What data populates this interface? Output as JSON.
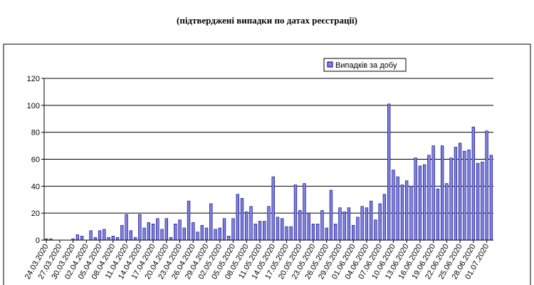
{
  "chart_data": {
    "type": "bar",
    "subtitle": "(підтверджені випадки по датах реєстрації)",
    "categories": [
      "24.03.2020",
      null,
      null,
      "27.03.2020",
      null,
      null,
      "30.03.2020",
      null,
      null,
      "02.04.2020",
      null,
      null,
      "05.04.2020",
      null,
      null,
      "08.04.2020",
      null,
      null,
      "11.04.2020",
      null,
      null,
      "14.04.2020",
      null,
      null,
      "17.04.2020",
      null,
      null,
      "20.04.2020",
      null,
      null,
      "23.04.2020",
      null,
      null,
      "26.04.2020",
      null,
      null,
      "29.04.2020",
      null,
      null,
      "02.05.2020",
      null,
      null,
      "05.05.2020",
      null,
      null,
      "08.05.2020",
      null,
      null,
      "11.05.2020",
      null,
      null,
      "14.05.2020",
      null,
      null,
      "17.05.2020",
      null,
      null,
      "20.05.2020",
      null,
      null,
      "23.05.2020",
      null,
      null,
      "26.05.2020",
      null,
      null,
      "29.05.2020",
      null,
      null,
      "01.06.2020",
      null,
      null,
      "04.06.2020",
      null,
      null,
      "07.06.2020",
      null,
      null,
      "10.06.2020",
      null,
      null,
      "13.06.2020",
      null,
      null,
      "16.06.2020",
      null,
      null,
      "19.06.2020",
      null,
      null,
      "22.06.2020",
      null,
      null,
      "25.06.2020",
      null,
      null,
      "28.06.2020",
      null,
      null,
      "01.07.2020",
      null
    ],
    "series": [
      {
        "name": "Випадків за добу",
        "color": "#8080e0",
        "values": [
          1,
          1,
          0,
          0,
          0,
          0,
          1,
          4,
          3,
          0,
          7,
          2,
          7,
          8,
          2,
          3,
          2,
          11,
          19,
          7,
          2,
          19,
          9,
          13,
          12,
          16,
          8,
          16,
          2,
          12,
          15,
          9,
          29,
          13,
          6,
          11,
          9,
          27,
          8,
          9,
          16,
          3,
          16,
          34,
          31,
          21,
          25,
          12,
          14,
          14,
          25,
          47,
          17,
          16,
          10,
          10,
          41,
          22,
          42,
          20,
          12,
          12,
          22,
          9,
          37,
          12,
          24,
          21,
          24,
          11,
          17,
          25,
          24,
          29,
          15,
          27,
          34,
          101,
          52,
          47,
          41,
          44,
          40,
          61,
          55,
          56,
          63,
          70,
          38,
          70,
          42,
          61,
          69,
          72,
          66,
          67,
          84,
          57,
          58,
          81,
          63
        ]
      }
    ],
    "ylim": [
      0,
      120
    ],
    "yticks": [
      0,
      20,
      40,
      60,
      80,
      100,
      120
    ],
    "grid": true,
    "legend": "top-right"
  }
}
